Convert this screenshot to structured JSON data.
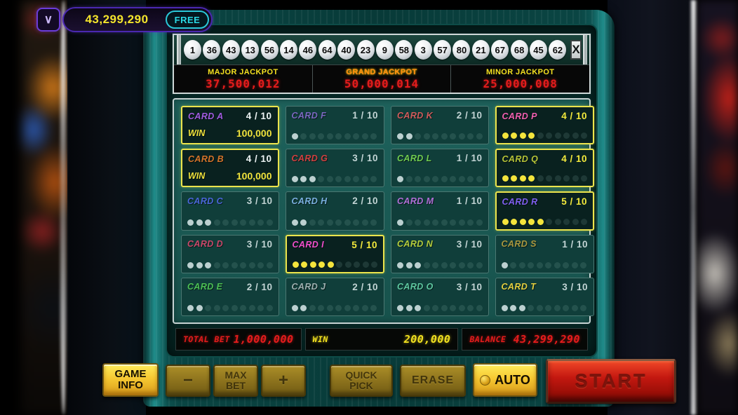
{
  "hud": {
    "chevron_glyph": "∨",
    "balance": "43,299,290",
    "free_badge": "FREE"
  },
  "draw": {
    "balls": [
      "1",
      "36",
      "43",
      "13",
      "56",
      "14",
      "46",
      "64",
      "40",
      "23",
      "9",
      "58",
      "3",
      "57",
      "80",
      "21",
      "67",
      "68",
      "45",
      "62"
    ],
    "close_label": "X"
  },
  "jackpots": [
    {
      "label": "MAJOR JACKPOT",
      "value": "37,500,012"
    },
    {
      "label": "GRAND JACKPOT",
      "value": "50,000,014"
    },
    {
      "label": "MINOR JACKPOT",
      "value": "25,000,008"
    }
  ],
  "cards": [
    {
      "id": "a",
      "name": "CARD A",
      "hits": 4,
      "total": 10,
      "color": "#a05ce0",
      "highlighted": true,
      "win_label": "WIN",
      "win": "100,000"
    },
    {
      "id": "b",
      "name": "CARD B",
      "hits": 4,
      "total": 10,
      "color": "#d4742a",
      "highlighted": true,
      "win_label": "WIN",
      "win": "100,000"
    },
    {
      "id": "c",
      "name": "CARD C",
      "hits": 3,
      "total": 10,
      "color": "#4a66d8",
      "highlighted": false
    },
    {
      "id": "d",
      "name": "CARD D",
      "hits": 3,
      "total": 10,
      "color": "#c8486a",
      "highlighted": false
    },
    {
      "id": "e",
      "name": "CARD E",
      "hits": 2,
      "total": 10,
      "color": "#4cc054",
      "highlighted": false
    },
    {
      "id": "f",
      "name": "CARD F",
      "hits": 1,
      "total": 10,
      "color": "#7a68c0",
      "highlighted": false
    },
    {
      "id": "g",
      "name": "CARD G",
      "hits": 3,
      "total": 10,
      "color": "#d04040",
      "highlighted": false
    },
    {
      "id": "h",
      "name": "CARD H",
      "hits": 2,
      "total": 10,
      "color": "#7ab0e0",
      "highlighted": false
    },
    {
      "id": "i",
      "name": "CARD I",
      "hits": 5,
      "total": 10,
      "color": "#f050cc",
      "highlighted": true
    },
    {
      "id": "j",
      "name": "CARD J",
      "hits": 2,
      "total": 10,
      "color": "#9cb0b0",
      "highlighted": false
    },
    {
      "id": "k",
      "name": "CARD K",
      "hits": 2,
      "total": 10,
      "color": "#d05c5c",
      "highlighted": false
    },
    {
      "id": "l",
      "name": "CARD L",
      "hits": 1,
      "total": 10,
      "color": "#70cc50",
      "highlighted": false
    },
    {
      "id": "m",
      "name": "CARD M",
      "hits": 1,
      "total": 10,
      "color": "#b070d8",
      "highlighted": false
    },
    {
      "id": "n",
      "name": "CARD N",
      "hits": 3,
      "total": 10,
      "color": "#b4cc3c",
      "highlighted": false
    },
    {
      "id": "o",
      "name": "CARD O",
      "hits": 3,
      "total": 10,
      "color": "#5ec8a0",
      "highlighted": false
    },
    {
      "id": "p",
      "name": "CARD P",
      "hits": 4,
      "total": 10,
      "color": "#f060b0",
      "highlighted": true
    },
    {
      "id": "q",
      "name": "CARD Q",
      "hits": 4,
      "total": 10,
      "color": "#b6c438",
      "highlighted": true
    },
    {
      "id": "r",
      "name": "CARD R",
      "hits": 5,
      "total": 10,
      "color": "#8060f0",
      "highlighted": true
    },
    {
      "id": "s",
      "name": "CARD S",
      "hits": 1,
      "total": 10,
      "color": "#a89840",
      "highlighted": false
    },
    {
      "id": "t",
      "name": "CARD T",
      "hits": 3,
      "total": 10,
      "color": "#e4d040",
      "highlighted": false
    }
  ],
  "lcd": [
    {
      "label": "TOTAL BET",
      "value": "1,000,000",
      "color": "red"
    },
    {
      "label": "WIN",
      "value": "200,000",
      "color": "yellow"
    },
    {
      "label": "BALANCE",
      "value": "43,299,290",
      "color": "red"
    }
  ],
  "buttons": {
    "game_info": "GAME INFO",
    "minus": "−",
    "max_bet": "MAX BET",
    "plus": "+",
    "quick_pick": "QUICK PICK",
    "erase": "ERASE",
    "auto": "AUTO",
    "start": "START"
  },
  "colors": {
    "accent_teal": "#1f8c8a",
    "jackpot_value_red": "#e41c1c",
    "jackpot_label_yellow": "#f4e020",
    "grand_label_orange": "#ff8810",
    "highlight_yellow": "#ece44c",
    "lcd_red": "#e41c1c",
    "lcd_yellow": "#f0e020",
    "hud_balance_yellow": "#f4e42c",
    "free_badge_cyan": "#2ad8e4"
  }
}
